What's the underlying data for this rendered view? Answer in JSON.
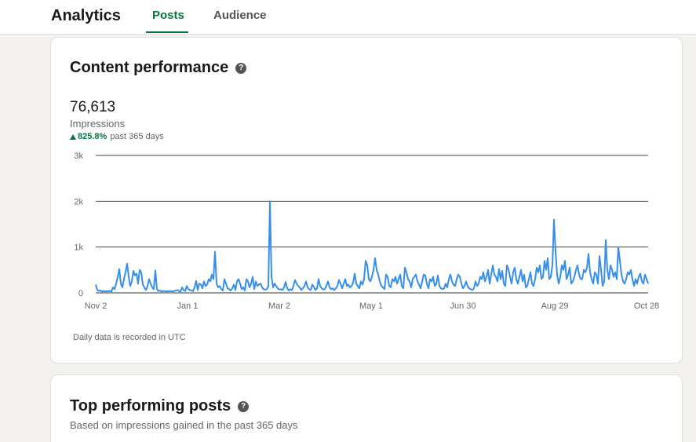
{
  "header": {
    "title": "Analytics",
    "tabs": [
      {
        "label": "Posts",
        "active": true
      },
      {
        "label": "Audience",
        "active": false
      }
    ],
    "accent_color": "#057642"
  },
  "content_performance": {
    "title": "Content performance",
    "help_icon": "question-circle-icon",
    "total": "76,613",
    "metric_label": "Impressions",
    "change_pct": "825.8%",
    "change_period": "past 365 days",
    "change_direction": "up",
    "footnote": "Daily data is recorded in UTC"
  },
  "chart_data": {
    "type": "line",
    "series_color": "#378fe9",
    "y_ticks": [
      "0",
      "1k",
      "2k",
      "3k"
    ],
    "ylim": [
      0,
      3000
    ],
    "x_ticks": [
      "Nov 2",
      "Jan 1",
      "Mar 2",
      "May 1",
      "Jun 30",
      "Aug 29",
      "Oct 28"
    ],
    "x_tick_day_index": [
      0,
      60,
      120,
      180,
      240,
      300,
      360
    ],
    "days": 362,
    "grid": true,
    "values": [
      180,
      60,
      40,
      50,
      30,
      40,
      30,
      40,
      35,
      40,
      30,
      120,
      80,
      200,
      350,
      520,
      200,
      120,
      300,
      450,
      640,
      350,
      150,
      250,
      480,
      380,
      420,
      200,
      500,
      450,
      180,
      120,
      60,
      150,
      300,
      200,
      120,
      80,
      490,
      80,
      40,
      50,
      30,
      40,
      40,
      30,
      40,
      35,
      40,
      30,
      40,
      50,
      60,
      40,
      30,
      120,
      60,
      40,
      150,
      80,
      60,
      50,
      40,
      120,
      260,
      60,
      200,
      180,
      100,
      250,
      150,
      180,
      300,
      250,
      400,
      300,
      900,
      200,
      120,
      150,
      80,
      50,
      300,
      200,
      100,
      80,
      50,
      100,
      180,
      60,
      250,
      300,
      200,
      80,
      120,
      50,
      300,
      250,
      120,
      200,
      350,
      80,
      250,
      150,
      180,
      200,
      120,
      80,
      70,
      80,
      150,
      2000,
      350,
      120,
      200,
      150,
      100,
      70,
      80,
      60,
      120,
      240,
      100,
      50,
      80,
      60,
      150,
      280,
      200,
      150,
      120,
      60,
      100,
      150,
      250,
      120,
      80,
      60,
      180,
      130,
      60,
      100,
      300,
      150,
      100,
      70,
      80,
      160,
      250,
      120,
      80,
      100,
      60,
      100,
      150,
      280,
      200,
      100,
      200,
      300,
      150,
      180,
      120,
      150,
      220,
      420,
      200,
      150,
      100,
      250,
      180,
      300,
      700,
      600,
      300,
      250,
      350,
      500,
      760,
      500,
      400,
      250,
      150,
      120,
      80,
      400,
      350,
      150,
      120,
      300,
      250,
      350,
      200,
      300,
      400,
      150,
      100,
      550,
      450,
      300,
      250,
      120,
      300,
      350,
      400,
      250,
      180,
      100,
      250,
      400,
      380,
      200,
      100,
      300,
      250,
      350,
      150,
      200,
      380,
      150,
      100,
      80,
      100,
      200,
      120,
      300,
      400,
      250,
      180,
      150,
      300,
      400,
      350,
      200,
      100,
      150,
      250,
      140,
      100,
      80,
      60,
      100,
      250,
      150,
      200,
      350,
      300,
      450,
      250,
      350,
      500,
      200,
      400,
      600,
      400,
      350,
      250,
      520,
      300,
      480,
      200,
      150,
      600,
      520,
      350,
      200,
      450,
      550,
      300,
      200,
      350,
      500,
      250,
      400,
      120,
      150,
      300,
      450,
      200,
      150,
      300,
      550,
      450,
      600,
      300,
      350,
      700,
      500,
      760,
      300,
      350,
      600,
      1600,
      900,
      400,
      200,
      350,
      600,
      500,
      700,
      300,
      400,
      550,
      200,
      250,
      350,
      500,
      600,
      400,
      300,
      300,
      500,
      450,
      550,
      850,
      450,
      300,
      200,
      450,
      400,
      200,
      800,
      500,
      150,
      250,
      1150,
      500,
      300,
      600,
      500,
      350,
      450,
      300,
      1000,
      700,
      400,
      250,
      200,
      300,
      450,
      400,
      500,
      300,
      150,
      300,
      200,
      350,
      420,
      250,
      200,
      400,
      300,
      200
    ]
  },
  "top_posts": {
    "title": "Top performing posts",
    "help_icon": "question-circle-icon",
    "subtitle": "Based on impressions gained in the past 365 days"
  }
}
